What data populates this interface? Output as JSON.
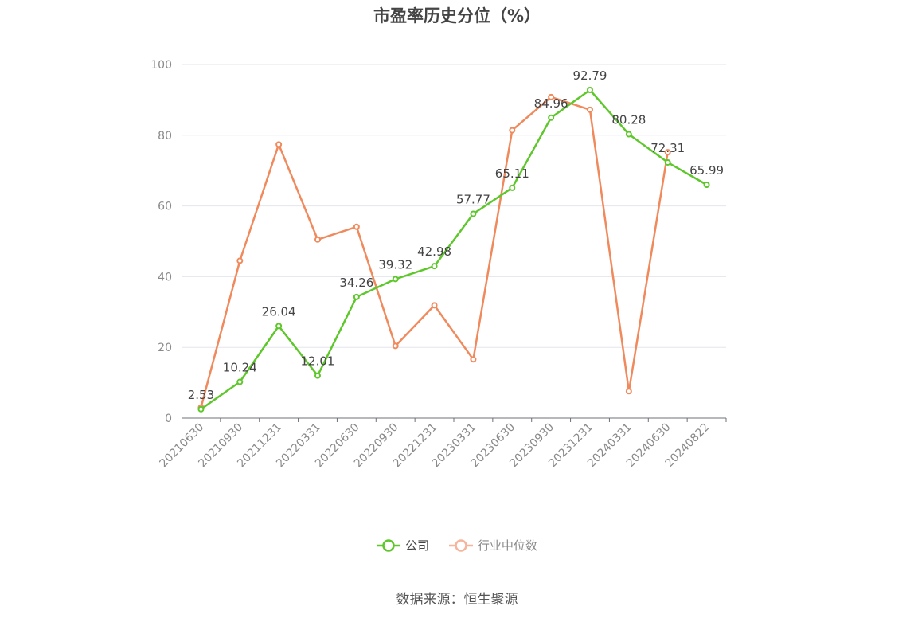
{
  "chart_data": {
    "type": "line",
    "title": "市盈率历史分位（%）",
    "categories": [
      "20210630",
      "20210930",
      "20211231",
      "20220331",
      "20220630",
      "20220930",
      "20221231",
      "20230331",
      "20230630",
      "20230930",
      "20231231",
      "20240331",
      "20240630",
      "20240822"
    ],
    "ylim": [
      0,
      100
    ],
    "yticks": [
      0,
      20,
      40,
      60,
      80,
      100
    ],
    "series": [
      {
        "name": "公司",
        "color": "#5ec72b",
        "values": [
          2.53,
          10.24,
          26.04,
          12.01,
          34.26,
          39.32,
          42.98,
          57.77,
          65.11,
          84.96,
          92.79,
          80.28,
          72.31,
          65.99
        ],
        "labels": [
          "2.53",
          "10.24",
          "26.04",
          "12.01",
          "34.26",
          "39.32",
          "42.98",
          "57.77",
          "65.11",
          "84.96",
          "92.79",
          "80.28",
          "72.31",
          "65.99"
        ]
      },
      {
        "name": "行业中位数",
        "color": "#f08a5d",
        "values": [
          3.0,
          44.5,
          77.4,
          50.5,
          54.1,
          20.4,
          31.9,
          16.6,
          81.4,
          90.8,
          87.2,
          7.6,
          75.2,
          null
        ]
      }
    ],
    "legend_position": "bottom",
    "grid": true
  },
  "legend": {
    "company_label": "公司",
    "industry_label": "行业中位数"
  },
  "footer": {
    "source": "数据来源：恒生聚源"
  }
}
